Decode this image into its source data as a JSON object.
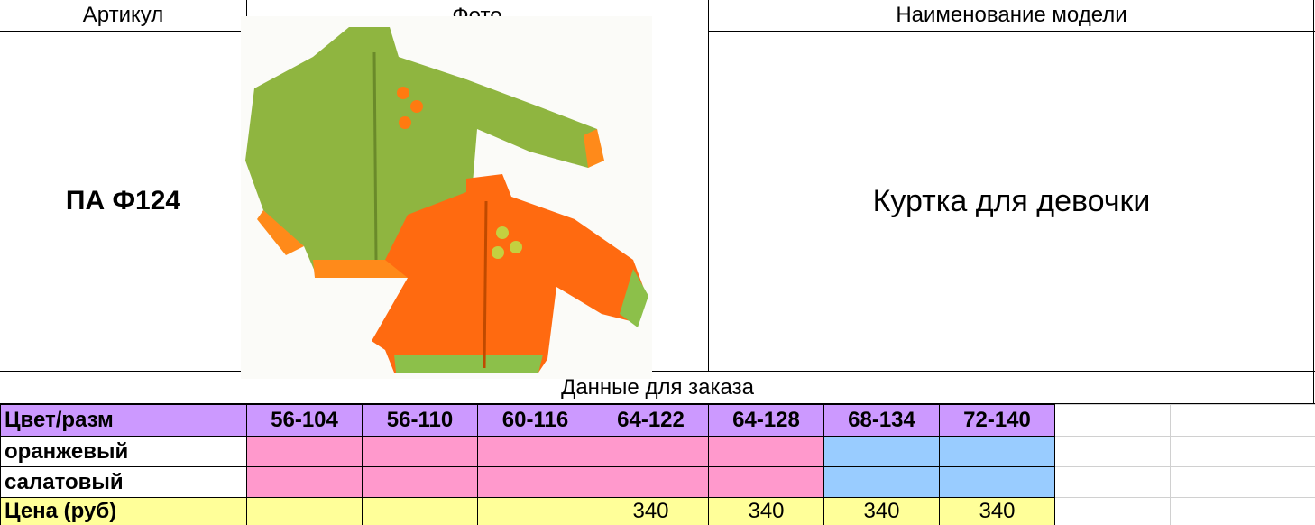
{
  "header": {
    "article_label": "Артикул",
    "photo_label": "Фото",
    "name_label": "Наименование модели"
  },
  "article": "ПА Ф124",
  "model_name": "Куртка для девочки",
  "order_section": "Данные для заказа",
  "table": {
    "header": [
      "Цвет/разм",
      "56-104",
      "56-110",
      "60-116",
      "64-122",
      "64-128",
      "68-134",
      "72-140"
    ],
    "rows": [
      [
        "оранжевый"
      ],
      [
        "салатовый"
      ]
    ],
    "price_label": "Цена (руб)",
    "prices": [
      null,
      null,
      null,
      340,
      340,
      340,
      340
    ]
  }
}
